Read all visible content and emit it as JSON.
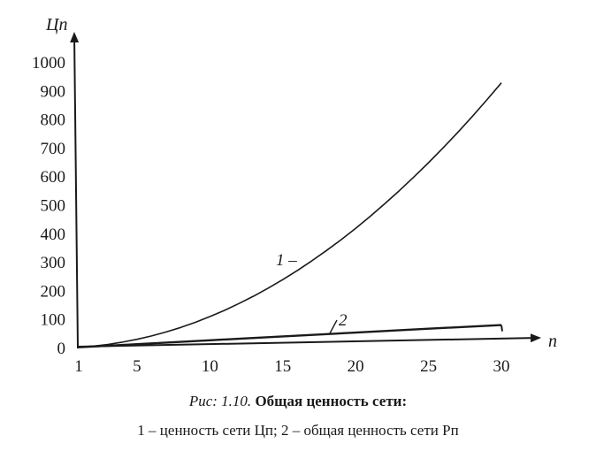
{
  "chart_data": {
    "type": "line",
    "x_axis_label": "n",
    "y_axis_label": "Цп",
    "xlim": [
      1,
      30
    ],
    "ylim": [
      0,
      1000
    ],
    "x_ticks": [
      1,
      5,
      10,
      15,
      20,
      25,
      30
    ],
    "y_ticks": [
      0,
      100,
      200,
      300,
      400,
      500,
      600,
      700,
      800,
      900,
      1000
    ],
    "grid": false,
    "series": [
      {
        "name": "1",
        "curve_label": "1 –",
        "x": [
          1,
          2,
          3,
          4,
          5,
          6,
          7,
          8,
          9,
          10,
          11,
          12,
          13,
          14,
          15,
          16,
          17,
          18,
          19,
          20,
          21,
          22,
          23,
          24,
          25,
          26,
          27,
          28,
          29,
          30
        ],
        "values": [
          1,
          4,
          9,
          16,
          25,
          36,
          49,
          64,
          81,
          100,
          121,
          144,
          169,
          196,
          225,
          256,
          289,
          324,
          361,
          400,
          441,
          484,
          529,
          576,
          625,
          676,
          729,
          784,
          841,
          900
        ]
      },
      {
        "name": "2",
        "curve_label": "2",
        "x": [
          1,
          5,
          10,
          15,
          20,
          25,
          30
        ],
        "values": [
          1,
          8,
          17,
          26,
          35,
          44,
          52
        ]
      }
    ]
  },
  "caption": {
    "figure_ref": "Рис: 1.10.",
    "title": "Общая ценность сети:",
    "line2": "1 – ценность сети Цп; 2 – общая ценность сети Рп"
  }
}
